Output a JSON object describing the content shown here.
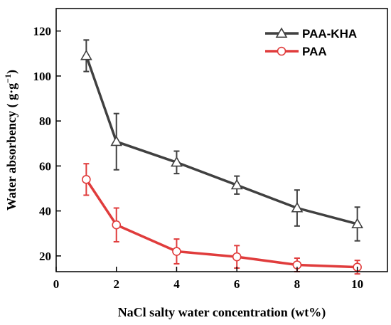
{
  "chart_data": {
    "type": "line",
    "title": "",
    "xlabel": "NaCl salty water concentration (wt%)",
    "ylabel": "Water absorbency ( g·g",
    "ylabel_sup": "−1",
    "ylabel_end": ")",
    "xlim": [
      0,
      11
    ],
    "ylim": [
      13,
      130
    ],
    "x_ticks": [
      0,
      2,
      4,
      6,
      8,
      10
    ],
    "y_ticks": [
      20,
      40,
      60,
      80,
      100,
      120
    ],
    "grid": false,
    "legend_position": "top-right",
    "x": [
      1,
      2,
      4,
      6,
      8,
      10
    ],
    "series": [
      {
        "name": "PAA-KHA",
        "color": "#404040",
        "marker": "triangle",
        "values": [
          109,
          70.8,
          61.6,
          51.5,
          41.3,
          34.2
        ],
        "errors": [
          7,
          12.5,
          5,
          4,
          8,
          7.5
        ]
      },
      {
        "name": "PAA",
        "color": "#e03c3c",
        "marker": "circle",
        "values": [
          54,
          33.8,
          22,
          19.6,
          16,
          15
        ],
        "errors": [
          7,
          7.5,
          5.5,
          5,
          3,
          3
        ]
      }
    ]
  }
}
